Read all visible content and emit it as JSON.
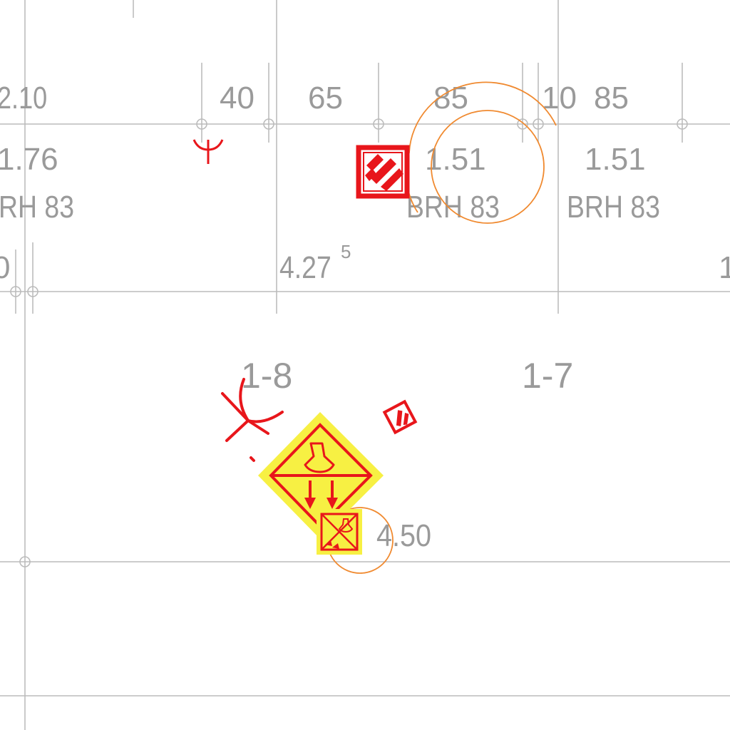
{
  "drawing": {
    "top_row": {
      "dims": [
        "2.10",
        "40",
        "65",
        "85",
        "10",
        "85"
      ],
      "values": [
        "1.76",
        "1.51",
        "1.51"
      ],
      "codes": [
        "RH 83",
        "BRH 83",
        "BRH 83"
      ],
      "left_edge_fragment": "0",
      "right_edge_fragment": "1",
      "level": "4.27",
      "level_superscript": "5"
    },
    "zones": [
      "1-8",
      "1-7"
    ],
    "level_marker": "4.50"
  },
  "symbols": {
    "fire_door_sign": "fire-exit-door-icon",
    "small_sign": "small-exit-sign-icon",
    "hose_diamond": "fire-hose-diamond-icon",
    "extinguisher_box": "extinguisher-box-icon",
    "hydrant_marker": "hydrant-symbol-icon",
    "large_hydrant": "large-hydrant-symbol-icon"
  },
  "colors": {
    "grid": "#bcbcbc",
    "label": "#9a9a9a",
    "fire": "#e8161b",
    "sign_fill": "#f7f043",
    "swing": "#f08a30"
  }
}
